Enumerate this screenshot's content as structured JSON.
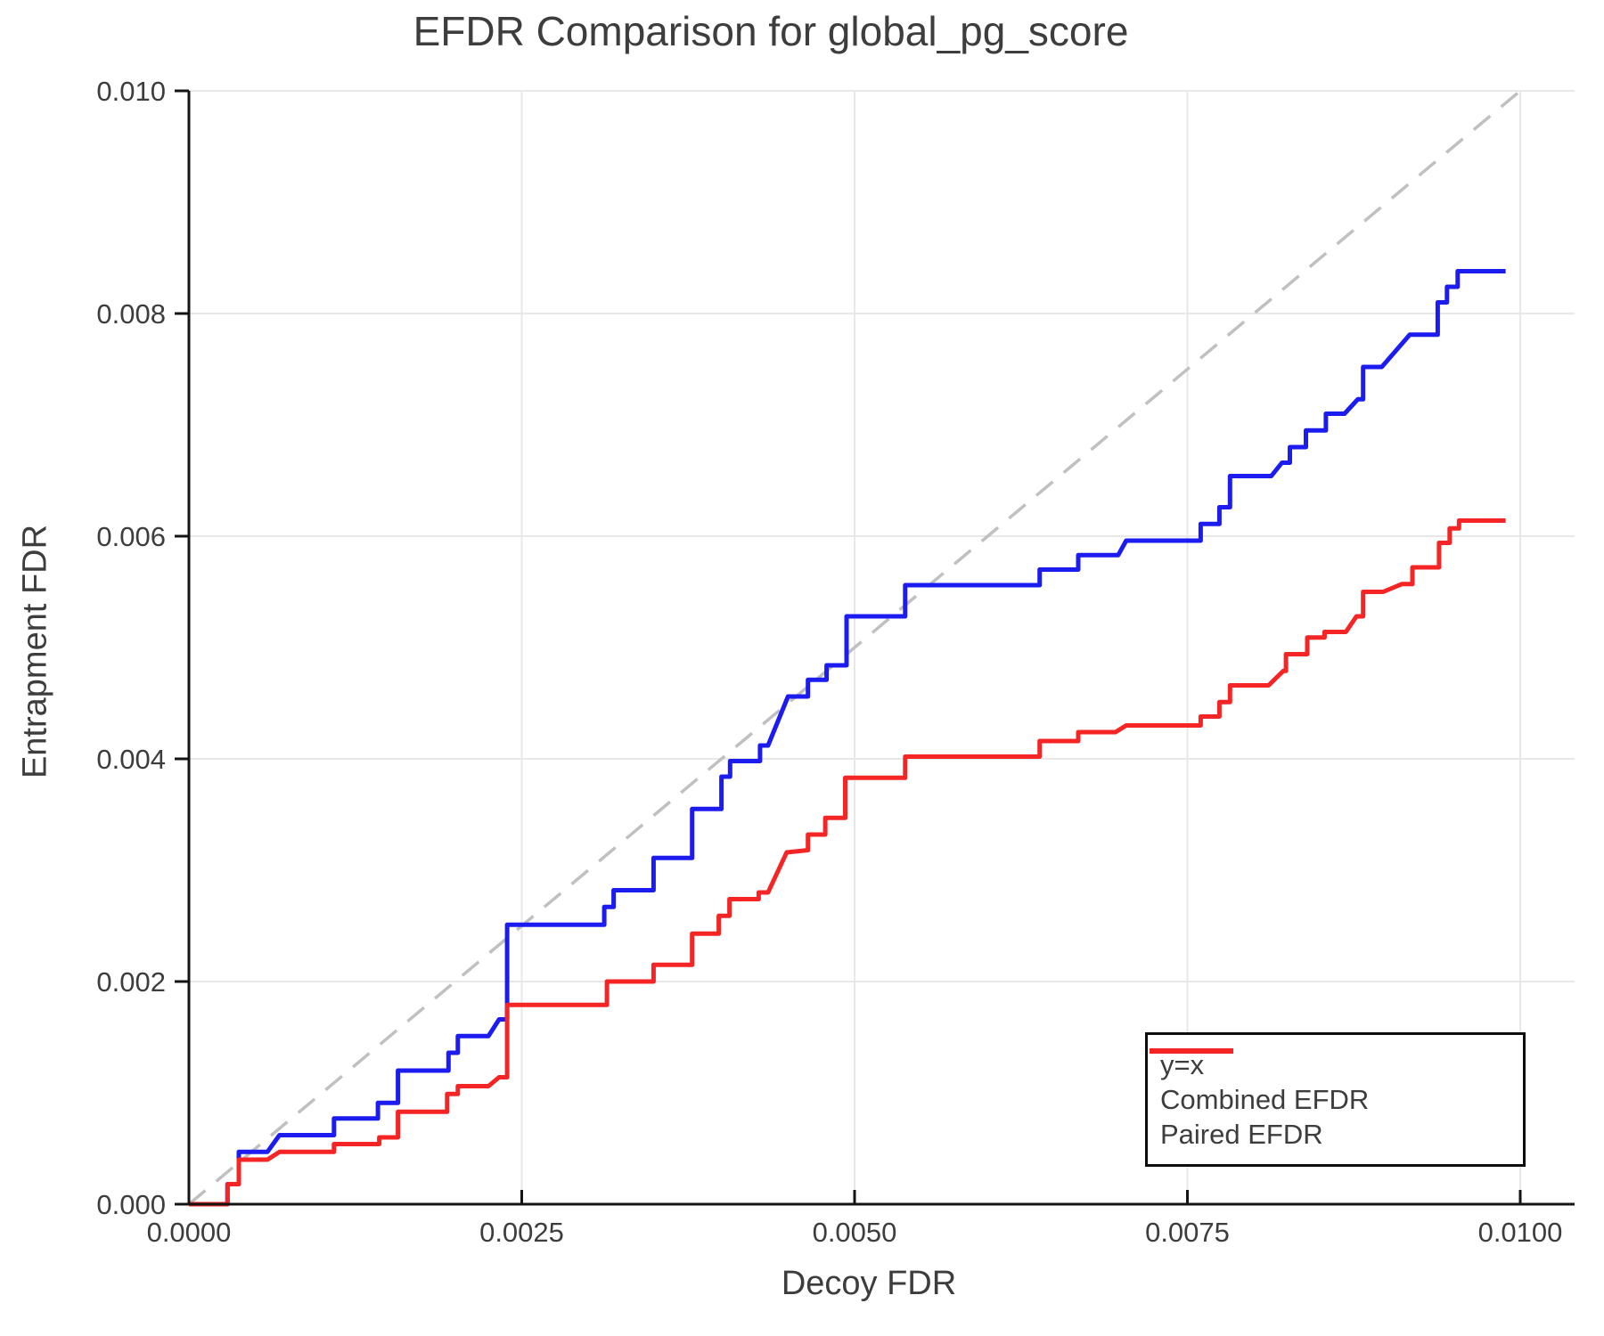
{
  "title": "EFDR Comparison for global_pg_score",
  "xlabel": "Decoy FDR",
  "ylabel": "Entrapment FDR",
  "legend": {
    "position": "lower right",
    "items": [
      {
        "label": "y=x",
        "series_index": 0
      },
      {
        "label": "Combined EFDR",
        "series_index": 1
      },
      {
        "label": "Paired EFDR",
        "series_index": 2
      }
    ]
  },
  "colors": {
    "reference_gray": "#c0c0c0",
    "combined_blue": "#1c1cf0",
    "paired_red": "#f52525",
    "grid": "#e8e8e8",
    "spine": "#141414",
    "text": "#3d3d3d"
  },
  "chart_data": {
    "type": "line",
    "title": "EFDR Comparison for global_pg_score",
    "xlabel": "Decoy FDR",
    "ylabel": "Entrapment FDR",
    "xlim": [
      0,
      0.0104
    ],
    "ylim": [
      0,
      0.01
    ],
    "grid": true,
    "legend_position": "lower right",
    "x_ticks": {
      "values": [
        0,
        0.0025,
        0.005,
        0.0075,
        0.01
      ],
      "labels": [
        "0.0000",
        "0.0025",
        "0.0050",
        "0.0075",
        "0.0100"
      ]
    },
    "y_ticks": {
      "values": [
        0,
        0.002,
        0.004,
        0.006,
        0.008,
        0.01
      ],
      "labels": [
        "0.000",
        "0.002",
        "0.004",
        "0.006",
        "0.008",
        "0.010"
      ]
    },
    "series": [
      {
        "name": "y=x",
        "color": "#c0c0c0",
        "dash": "24 16",
        "width": 3.5,
        "points": [
          [
            0,
            0
          ],
          [
            0.01,
            0.01
          ]
        ]
      },
      {
        "name": "Combined EFDR",
        "color": "#1c1cf0",
        "dash": null,
        "width": 5,
        "points": [
          [
            0,
            0
          ],
          [
            0.00029,
            0
          ],
          [
            0.00029,
            0.00018
          ],
          [
            0.000375,
            0.00018
          ],
          [
            0.000375,
            0.00047
          ],
          [
            0.00059,
            0.00047
          ],
          [
            0.00068,
            0.00062
          ],
          [
            0.00109,
            0.00062
          ],
          [
            0.00109,
            0.00077
          ],
          [
            0.00142,
            0.00077
          ],
          [
            0.00142,
            0.00091
          ],
          [
            0.00157,
            0.00091
          ],
          [
            0.00157,
            0.0012
          ],
          [
            0.00195,
            0.0012
          ],
          [
            0.00195,
            0.00136
          ],
          [
            0.00202,
            0.00136
          ],
          [
            0.00202,
            0.00151
          ],
          [
            0.00225,
            0.00151
          ],
          [
            0.00233,
            0.00166
          ],
          [
            0.00239,
            0.00166
          ],
          [
            0.00239,
            0.00251
          ],
          [
            0.00312,
            0.00251
          ],
          [
            0.00312,
            0.00267
          ],
          [
            0.00319,
            0.00267
          ],
          [
            0.00319,
            0.00282
          ],
          [
            0.00349,
            0.00282
          ],
          [
            0.00349,
            0.00311
          ],
          [
            0.00378,
            0.00311
          ],
          [
            0.00378,
            0.00355
          ],
          [
            0.004,
            0.00355
          ],
          [
            0.004,
            0.00384
          ],
          [
            0.004065,
            0.00384
          ],
          [
            0.004065,
            0.00398
          ],
          [
            0.00429,
            0.00398
          ],
          [
            0.00429,
            0.00412
          ],
          [
            0.00435,
            0.00412
          ],
          [
            0.0045,
            0.00456
          ],
          [
            0.00465,
            0.00456
          ],
          [
            0.00465,
            0.00471
          ],
          [
            0.00479,
            0.00471
          ],
          [
            0.00479,
            0.00484
          ],
          [
            0.00494,
            0.00484
          ],
          [
            0.00494,
            0.00528
          ],
          [
            0.00538,
            0.00528
          ],
          [
            0.00538,
            0.00556
          ],
          [
            0.00639,
            0.00556
          ],
          [
            0.00639,
            0.0057
          ],
          [
            0.00668,
            0.0057
          ],
          [
            0.00668,
            0.00583
          ],
          [
            0.00698,
            0.00583
          ],
          [
            0.00704,
            0.00596
          ],
          [
            0.0076,
            0.00596
          ],
          [
            0.0076,
            0.00611
          ],
          [
            0.00774,
            0.00611
          ],
          [
            0.00774,
            0.00626
          ],
          [
            0.00782,
            0.00626
          ],
          [
            0.00782,
            0.00654
          ],
          [
            0.00813,
            0.00654
          ],
          [
            0.00821,
            0.00666
          ],
          [
            0.00827,
            0.00666
          ],
          [
            0.00827,
            0.0068
          ],
          [
            0.00839,
            0.0068
          ],
          [
            0.00839,
            0.00695
          ],
          [
            0.00854,
            0.00695
          ],
          [
            0.00854,
            0.0071
          ],
          [
            0.00868,
            0.0071
          ],
          [
            0.00878,
            0.00723
          ],
          [
            0.00882,
            0.00723
          ],
          [
            0.00882,
            0.00752
          ],
          [
            0.00896,
            0.00752
          ],
          [
            0.00917,
            0.00781
          ],
          [
            0.00938,
            0.00781
          ],
          [
            0.00938,
            0.0081
          ],
          [
            0.00945,
            0.0081
          ],
          [
            0.00945,
            0.00824
          ],
          [
            0.00953,
            0.00824
          ],
          [
            0.00953,
            0.00838
          ],
          [
            0.00989,
            0.00838
          ]
        ]
      },
      {
        "name": "Paired EFDR",
        "color": "#f52525",
        "dash": null,
        "width": 5,
        "points": [
          [
            0,
            0
          ],
          [
            0.00029,
            0
          ],
          [
            0.00029,
            0.00018
          ],
          [
            0.000375,
            0.00018
          ],
          [
            0.000375,
            0.0004
          ],
          [
            0.00059,
            0.0004
          ],
          [
            0.00068,
            0.00047
          ],
          [
            0.00109,
            0.00047
          ],
          [
            0.00109,
            0.00054
          ],
          [
            0.00143,
            0.00054
          ],
          [
            0.00143,
            0.0006
          ],
          [
            0.00157,
            0.0006
          ],
          [
            0.00157,
            0.00083
          ],
          [
            0.00194,
            0.00083
          ],
          [
            0.00194,
            0.00099
          ],
          [
            0.00202,
            0.00099
          ],
          [
            0.00202,
            0.00106
          ],
          [
            0.00225,
            0.00106
          ],
          [
            0.00233,
            0.00114
          ],
          [
            0.00239,
            0.00114
          ],
          [
            0.00239,
            0.00179
          ],
          [
            0.00314,
            0.00179
          ],
          [
            0.00314,
            0.002
          ],
          [
            0.00349,
            0.002
          ],
          [
            0.00349,
            0.00215
          ],
          [
            0.00378,
            0.00215
          ],
          [
            0.00378,
            0.00243
          ],
          [
            0.00398,
            0.00243
          ],
          [
            0.00398,
            0.00259
          ],
          [
            0.00406,
            0.00259
          ],
          [
            0.00406,
            0.00274
          ],
          [
            0.00428,
            0.00274
          ],
          [
            0.00428,
            0.0028
          ],
          [
            0.00435,
            0.0028
          ],
          [
            0.00449,
            0.00316
          ],
          [
            0.00465,
            0.00318
          ],
          [
            0.00465,
            0.00332
          ],
          [
            0.00478,
            0.00332
          ],
          [
            0.00478,
            0.00347
          ],
          [
            0.00493,
            0.00347
          ],
          [
            0.00493,
            0.00383
          ],
          [
            0.00538,
            0.00383
          ],
          [
            0.00538,
            0.00402
          ],
          [
            0.00639,
            0.00402
          ],
          [
            0.00639,
            0.00416
          ],
          [
            0.00668,
            0.00416
          ],
          [
            0.00668,
            0.00424
          ],
          [
            0.00696,
            0.00424
          ],
          [
            0.00704,
            0.0043
          ],
          [
            0.0076,
            0.0043
          ],
          [
            0.0076,
            0.00438
          ],
          [
            0.00774,
            0.00438
          ],
          [
            0.00774,
            0.00451
          ],
          [
            0.00782,
            0.00451
          ],
          [
            0.00782,
            0.00466
          ],
          [
            0.00811,
            0.00466
          ],
          [
            0.00822,
            0.00479
          ],
          [
            0.00824,
            0.00479
          ],
          [
            0.00824,
            0.00494
          ],
          [
            0.0084,
            0.00494
          ],
          [
            0.0084,
            0.00509
          ],
          [
            0.00853,
            0.00509
          ],
          [
            0.00853,
            0.00514
          ],
          [
            0.00869,
            0.00514
          ],
          [
            0.00877,
            0.00528
          ],
          [
            0.00882,
            0.00528
          ],
          [
            0.00882,
            0.0055
          ],
          [
            0.00897,
            0.0055
          ],
          [
            0.00911,
            0.00557
          ],
          [
            0.00919,
            0.00557
          ],
          [
            0.00919,
            0.00572
          ],
          [
            0.00939,
            0.00572
          ],
          [
            0.00939,
            0.00594
          ],
          [
            0.00947,
            0.00594
          ],
          [
            0.00947,
            0.00607
          ],
          [
            0.00954,
            0.00607
          ],
          [
            0.00954,
            0.00614
          ],
          [
            0.00989,
            0.00614
          ]
        ]
      }
    ]
  }
}
